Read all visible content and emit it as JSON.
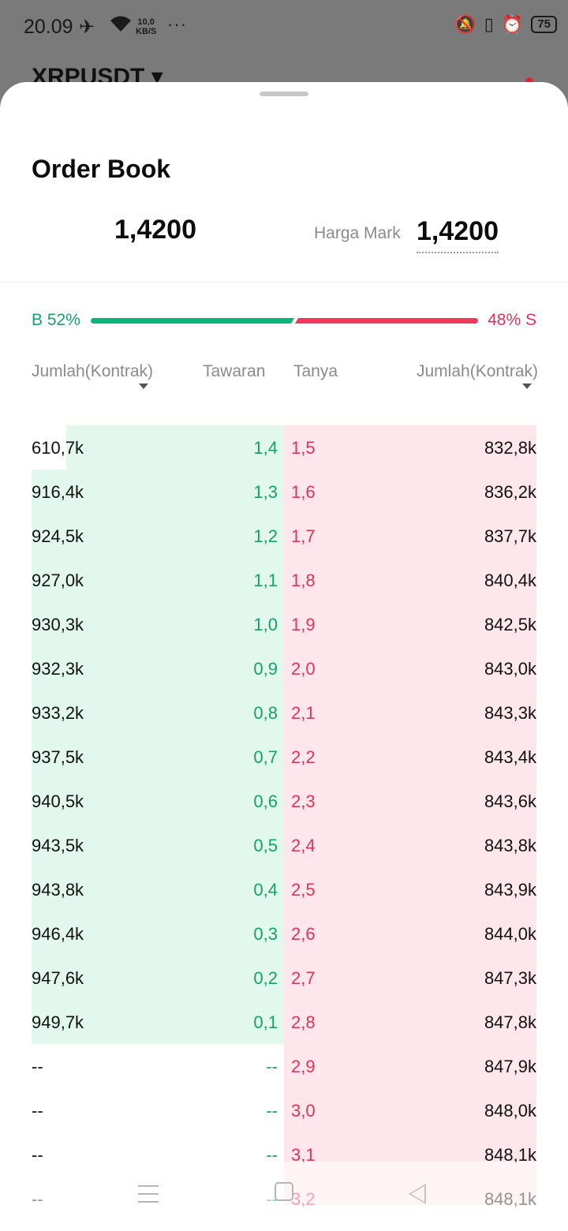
{
  "status_bar": {
    "time": "20.09",
    "net_speed_value": "10,0",
    "net_speed_unit": "KB/S",
    "battery": "75",
    "icons": [
      "airplane-icon",
      "wifi-icon",
      "more-dots-icon",
      "bell-muted-icon",
      "vibrate-icon",
      "alarm-icon",
      "battery-icon"
    ]
  },
  "background": {
    "symbol": "XRPUSDT ▾"
  },
  "sheet": {
    "title": "Order Book",
    "last_price": "1,4200",
    "mark_label": "Harga Mark",
    "mark_price": "1,4200"
  },
  "ratio": {
    "buy_label": "B 52%",
    "sell_label": "48% S",
    "buy_fraction": 0.52,
    "sell_fraction": 0.48
  },
  "columns": {
    "bid_qty": "Jumlah(Kontrak)",
    "bid": "Tawaran",
    "ask": "Tanya",
    "ask_qty": "Jumlah(Kontrak)"
  },
  "colors": {
    "buy": "#11a36b",
    "sell": "#e0325a",
    "buy_bg": "#e2f8ef",
    "sell_bg": "#fde7ec"
  },
  "rows": [
    {
      "bid_qty": "610,7k",
      "bid": "1,4",
      "ask": "1,5",
      "ask_qty": "832,8k"
    },
    {
      "bid_qty": "916,4k",
      "bid": "1,3",
      "ask": "1,6",
      "ask_qty": "836,2k"
    },
    {
      "bid_qty": "924,5k",
      "bid": "1,2",
      "ask": "1,7",
      "ask_qty": "837,7k"
    },
    {
      "bid_qty": "927,0k",
      "bid": "1,1",
      "ask": "1,8",
      "ask_qty": "840,4k"
    },
    {
      "bid_qty": "930,3k",
      "bid": "1,0",
      "ask": "1,9",
      "ask_qty": "842,5k"
    },
    {
      "bid_qty": "932,3k",
      "bid": "0,9",
      "ask": "2,0",
      "ask_qty": "843,0k"
    },
    {
      "bid_qty": "933,2k",
      "bid": "0,8",
      "ask": "2,1",
      "ask_qty": "843,3k"
    },
    {
      "bid_qty": "937,5k",
      "bid": "0,7",
      "ask": "2,2",
      "ask_qty": "843,4k"
    },
    {
      "bid_qty": "940,5k",
      "bid": "0,6",
      "ask": "2,3",
      "ask_qty": "843,6k"
    },
    {
      "bid_qty": "943,5k",
      "bid": "0,5",
      "ask": "2,4",
      "ask_qty": "843,8k"
    },
    {
      "bid_qty": "943,8k",
      "bid": "0,4",
      "ask": "2,5",
      "ask_qty": "843,9k"
    },
    {
      "bid_qty": "946,4k",
      "bid": "0,3",
      "ask": "2,6",
      "ask_qty": "844,0k"
    },
    {
      "bid_qty": "947,6k",
      "bid": "0,2",
      "ask": "2,7",
      "ask_qty": "847,3k"
    },
    {
      "bid_qty": "949,7k",
      "bid": "0,1",
      "ask": "2,8",
      "ask_qty": "847,8k"
    },
    {
      "bid_qty": "--",
      "bid": "--",
      "ask": "2,9",
      "ask_qty": "847,9k"
    },
    {
      "bid_qty": "--",
      "bid": "--",
      "ask": "3,0",
      "ask_qty": "848,0k"
    },
    {
      "bid_qty": "--",
      "bid": "--",
      "ask": "3,1",
      "ask_qty": "848,1k"
    },
    {
      "bid_qty": "--",
      "bid": "--",
      "ask": "3,2",
      "ask_qty": "848,1k"
    }
  ],
  "nav": {
    "icons": [
      "menu-icon",
      "home-icon",
      "back-icon"
    ]
  }
}
